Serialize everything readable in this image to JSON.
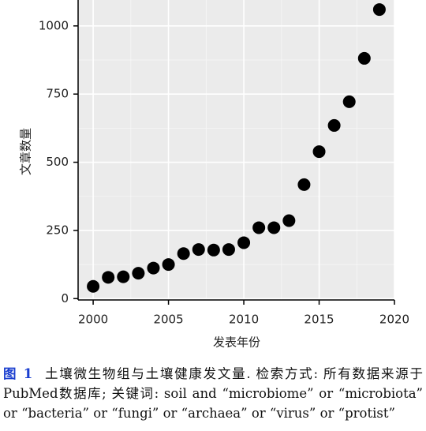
{
  "chart_data": {
    "type": "scatter",
    "x": [
      2000,
      2001,
      2002,
      2003,
      2004,
      2005,
      2006,
      2007,
      2008,
      2009,
      2010,
      2011,
      2012,
      2013,
      2014,
      2015,
      2016,
      2017,
      2018,
      2019
    ],
    "values": [
      45,
      78,
      80,
      93,
      112,
      125,
      165,
      180,
      178,
      180,
      205,
      260,
      260,
      286,
      418,
      539,
      635,
      722,
      881,
      1060
    ],
    "color": "#000000",
    "xlabel": "发表年份",
    "ylabel": "文章数量",
    "xlim": [
      1999,
      2020
    ],
    "ylim": [
      -5,
      1095
    ],
    "xticks": [
      2000,
      2005,
      2010,
      2015,
      2020
    ],
    "yticks": [
      0,
      250,
      500,
      750,
      1000
    ],
    "grid": true
  },
  "caption": {
    "label": "图 1",
    "text": "土壤微生物组与土壤健康发文量. 检索方式: 所有数据来源于PubMed数据库; 关键词: soil and “microbiome” or “microbiota” or “bacteria” or “fungi” or “archaea” or “virus” or “protist”"
  }
}
